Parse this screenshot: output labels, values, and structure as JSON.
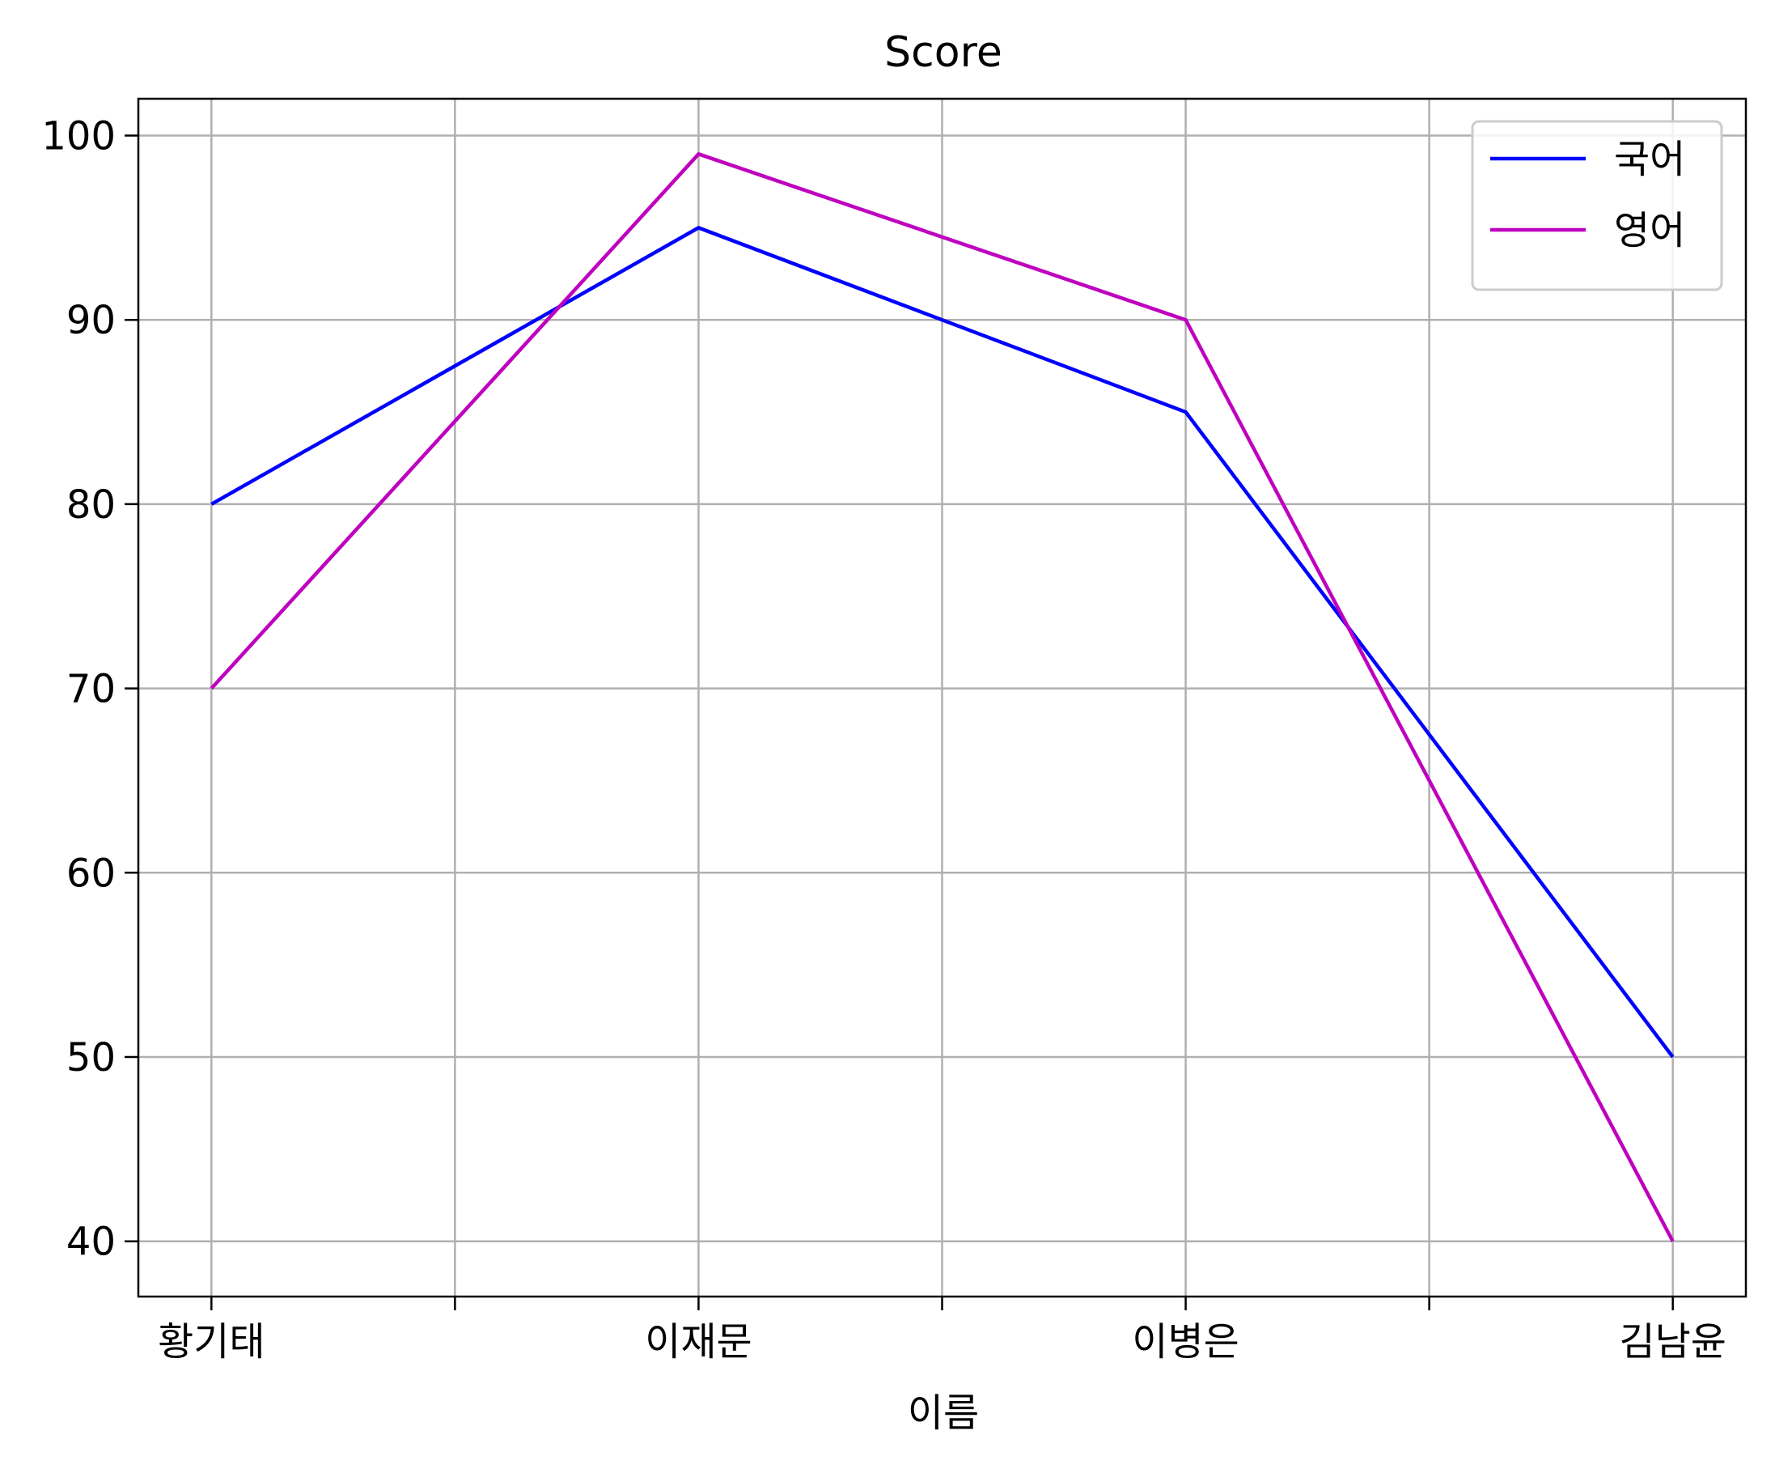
{
  "chart_data": {
    "type": "line",
    "title": "Score",
    "xlabel": "이름",
    "ylabel": "",
    "categories": [
      "황기태",
      "이재문",
      "이병은",
      "김남윤"
    ],
    "x_ticks": [
      0,
      0.5,
      1,
      1.5,
      2,
      2.5,
      3
    ],
    "x_tick_labels": [
      "황기태",
      "",
      "이재문",
      "",
      "이병은",
      "",
      "김남윤"
    ],
    "xlim": [
      -0.15,
      3.15
    ],
    "ylim": [
      37,
      102
    ],
    "y_ticks": [
      40,
      50,
      60,
      70,
      80,
      90,
      100
    ],
    "grid": true,
    "legend_position": "top-right",
    "series": [
      {
        "name": "국어",
        "color": "#0000ff",
        "values": [
          80,
          95,
          85,
          50
        ]
      },
      {
        "name": "영어",
        "color": "#bf00bf",
        "values": [
          70,
          99,
          90,
          40
        ]
      }
    ]
  }
}
